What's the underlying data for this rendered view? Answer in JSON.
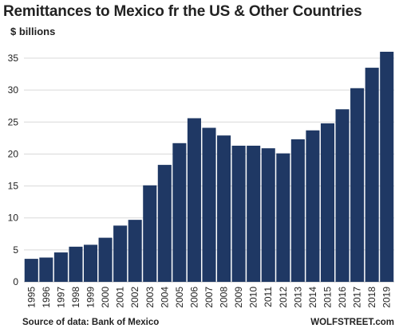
{
  "chart_data": {
    "type": "bar",
    "title": "Remittances to Mexico fr the US & Other Countries",
    "ylabel": "$ billions",
    "xlabel": "",
    "categories": [
      "1995",
      "1996",
      "1997",
      "1998",
      "1999",
      "2000",
      "2001",
      "2002",
      "2003",
      "2004",
      "2005",
      "2006",
      "2007",
      "2008",
      "2009",
      "2010",
      "2011",
      "2012",
      "2013",
      "2014",
      "2015",
      "2016",
      "2017",
      "2018",
      "2019"
    ],
    "values": [
      3.6,
      3.8,
      4.6,
      5.5,
      5.8,
      6.9,
      8.8,
      9.7,
      15.1,
      18.3,
      21.7,
      25.6,
      24.1,
      22.9,
      21.3,
      21.3,
      20.9,
      20.1,
      22.3,
      23.7,
      24.8,
      27.0,
      30.3,
      33.5,
      36.0
    ],
    "ylim": [
      0,
      36
    ],
    "yticks": [
      0,
      5,
      10,
      15,
      20,
      25,
      30,
      35
    ],
    "bar_color": "#1f3864",
    "grid": true,
    "legend": "none"
  },
  "footer": {
    "source": "Source of data: Bank of Mexico",
    "brand": "WOLFSTREET.com"
  }
}
